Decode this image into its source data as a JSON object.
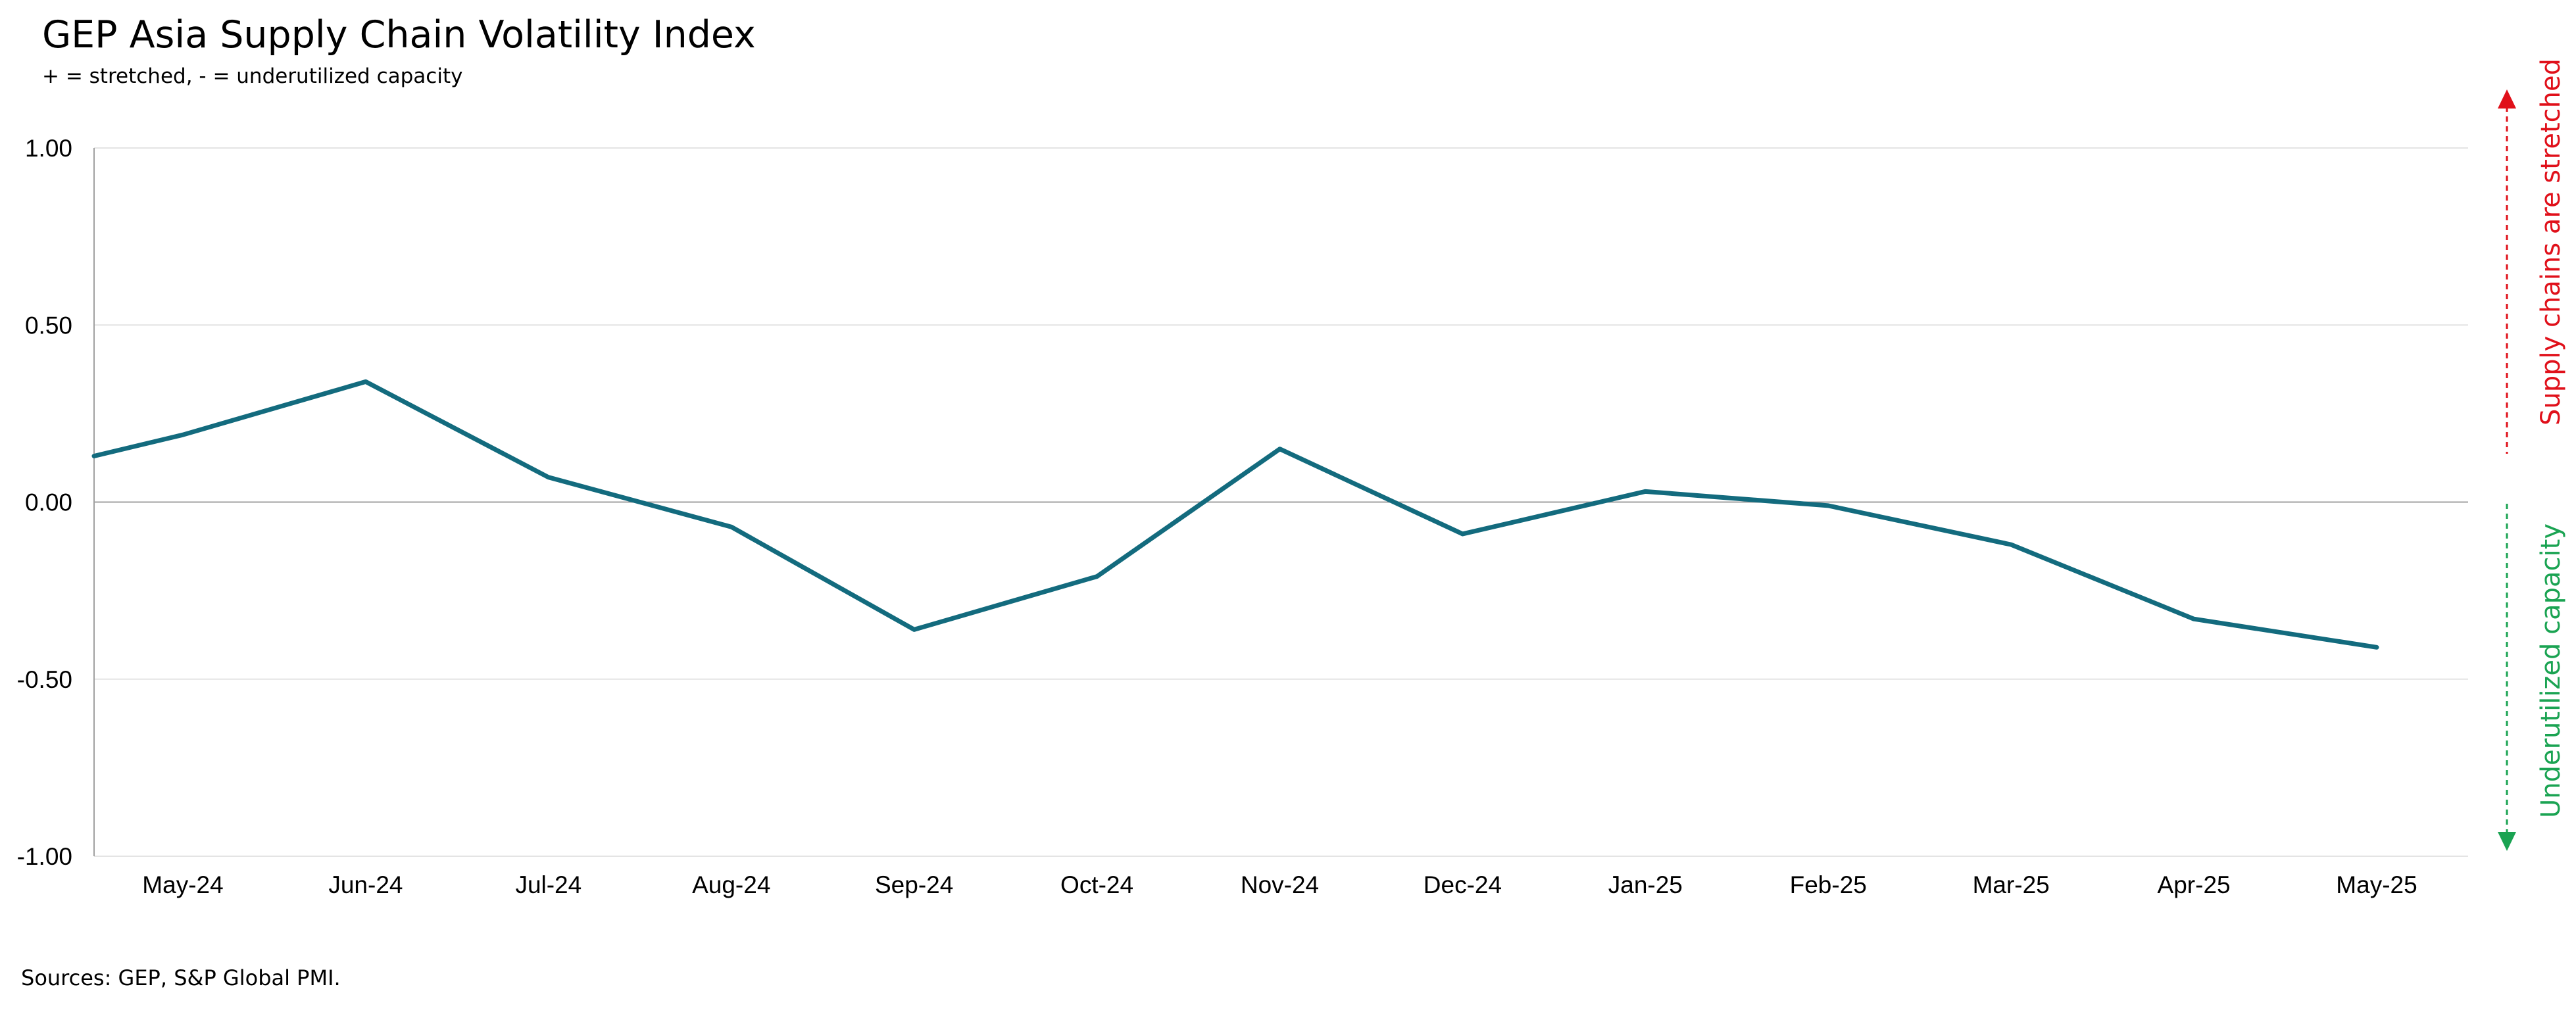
{
  "header": {
    "title": "GEP Asia Supply Chain Volatility Index",
    "subtitle": "+ = stretched, - = underutilized capacity"
  },
  "footer": {
    "source": "Sources: GEP, S&P Global PMI."
  },
  "annotations": {
    "up_label": "Supply chains are stretched",
    "down_label": "Underutilized capacity",
    "up_color": "#e0101a",
    "down_color": "#1aa352"
  },
  "chart_data": {
    "type": "line",
    "title": "GEP Asia Supply Chain Volatility Index",
    "subtitle": "+ = stretched, - = underutilized capacity",
    "xlabel": "",
    "ylabel": "",
    "ylim": [
      -1.0,
      1.0
    ],
    "yticks": [
      "1.00",
      "0.50",
      "0.00",
      "-0.50",
      "-1.00"
    ],
    "ytick_values": [
      1.0,
      0.5,
      0.0,
      -0.5,
      -1.0
    ],
    "categories": [
      "May-24",
      "Jun-24",
      "Jul-24",
      "Aug-24",
      "Sep-24",
      "Oct-24",
      "Nov-24",
      "Dec-24",
      "Jan-25",
      "Feb-25",
      "Mar-25",
      "Apr-25",
      "May-25"
    ],
    "series": [
      {
        "color": "#136b7e",
        "start_value": 0.13,
        "values": [
          0.19,
          0.34,
          0.07,
          -0.07,
          -0.36,
          -0.21,
          0.15,
          -0.09,
          0.03,
          -0.01,
          -0.12,
          -0.33,
          -0.41
        ]
      }
    ],
    "grid": true,
    "legend": "none"
  }
}
